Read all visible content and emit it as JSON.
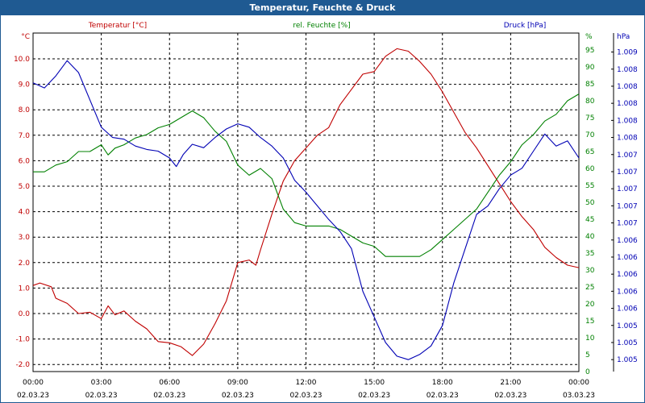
{
  "window": {
    "title": "Temperatur, Feuchte & Druck"
  },
  "colors": {
    "title_bar": "#1f5a92",
    "temperature": "#c00000",
    "humidity": "#008000",
    "pressure": "#0000b4",
    "grid": "#000000"
  },
  "chart_data": {
    "type": "line",
    "title": "Temperatur, Feuchte & Druck",
    "grid": true,
    "x": {
      "range": [
        "02.03.23 00:00",
        "03.03.23 00:00"
      ],
      "ticks": [
        {
          "time": "00:00",
          "date": "02.03.23",
          "hour": 0
        },
        {
          "time": "03:00",
          "date": "02.03.23",
          "hour": 3
        },
        {
          "time": "06:00",
          "date": "02.03.23",
          "hour": 6
        },
        {
          "time": "09:00",
          "date": "02.03.23",
          "hour": 9
        },
        {
          "time": "12:00",
          "date": "02.03.23",
          "hour": 12
        },
        {
          "time": "15:00",
          "date": "02.03.23",
          "hour": 15
        },
        {
          "time": "18:00",
          "date": "02.03.23",
          "hour": 18
        },
        {
          "time": "21:00",
          "date": "02.03.23",
          "hour": 21
        },
        {
          "time": "00:00",
          "date": "03.03.23",
          "hour": 24
        }
      ]
    },
    "axes": {
      "left": {
        "unit": "°C",
        "range": [
          -2.25,
          11.0
        ],
        "ticks": [
          "10.0",
          "9.0",
          "8.0",
          "7.0",
          "6.0",
          "5.0",
          "4.0",
          "3.0",
          "2.0",
          "1.0",
          "0.0",
          "-1.0",
          "-2.0"
        ],
        "tick_values": [
          10,
          9,
          8,
          7,
          6,
          5,
          4,
          3,
          2,
          1,
          0,
          -1,
          -2
        ]
      },
      "right1": {
        "unit": "%",
        "range": [
          0,
          96
        ],
        "ticks": [
          "95",
          "90",
          "85",
          "80",
          "75",
          "70",
          "65",
          "60",
          "55",
          "50",
          "45",
          "40",
          "35",
          "30",
          "25",
          "20",
          "15",
          "10",
          "5",
          "0"
        ],
        "tick_values": [
          95,
          90,
          85,
          80,
          75,
          70,
          65,
          60,
          55,
          50,
          45,
          40,
          35,
          30,
          25,
          20,
          15,
          10,
          5,
          0
        ]
      },
      "right2": {
        "unit": "hPa",
        "range": [
          0,
          20
        ],
        "ticks": [
          "1.009",
          "1.008",
          "1.008",
          "1.008",
          "1.008",
          "1.008",
          "1.007",
          "1.007",
          "1.007",
          "1.007",
          "1.007",
          "1.006",
          "1.006",
          "1.006",
          "1.006",
          "1.006",
          "1.005",
          "1.005",
          "1.005"
        ],
        "tick_values": [
          19,
          18,
          17,
          16,
          15,
          14,
          13,
          12,
          11,
          10,
          9,
          8,
          7,
          6,
          5,
          4,
          3,
          2,
          1
        ]
      }
    },
    "series": [
      {
        "name": "Temperatur [°C]",
        "axis": "left",
        "x": [
          0,
          0.3,
          0.8,
          1.0,
          1.5,
          2.0,
          2.5,
          3.0,
          3.3,
          3.6,
          4.0,
          4.5,
          5.0,
          5.5,
          6.0,
          6.5,
          7.0,
          7.5,
          8.0,
          8.5,
          9.0,
          9.5,
          9.8,
          10.0,
          10.5,
          11.0,
          11.5,
          12.0,
          12.5,
          13.0,
          13.5,
          14.0,
          14.5,
          15.0,
          15.5,
          16.0,
          16.5,
          17.0,
          17.5,
          18.0,
          18.5,
          19.0,
          19.5,
          20.0,
          20.5,
          21.0,
          21.5,
          22.0,
          22.5,
          23.0,
          23.5,
          24.0
        ],
        "values": [
          1.1,
          1.2,
          1.05,
          0.6,
          0.4,
          0.0,
          0.05,
          -0.2,
          0.3,
          -0.05,
          0.1,
          -0.3,
          -0.6,
          -1.1,
          -1.15,
          -1.3,
          -1.65,
          -1.2,
          -0.4,
          0.5,
          2.0,
          2.1,
          1.9,
          2.5,
          3.9,
          5.2,
          6.0,
          6.5,
          7.0,
          7.3,
          8.2,
          8.8,
          9.4,
          9.5,
          10.1,
          10.4,
          10.3,
          9.9,
          9.4,
          8.7,
          7.9,
          7.1,
          6.5,
          5.8,
          5.1,
          4.4,
          3.8,
          3.3,
          2.6,
          2.2,
          1.9,
          1.8
        ]
      },
      {
        "name": "rel. Feuchte [%]",
        "axis": "right1",
        "x": [
          0,
          0.5,
          1.0,
          1.5,
          2.0,
          2.5,
          3.0,
          3.3,
          3.6,
          4.0,
          4.5,
          5.0,
          5.5,
          6.0,
          6.5,
          7.0,
          7.5,
          8.0,
          8.5,
          9.0,
          9.5,
          10.0,
          10.5,
          11.0,
          11.5,
          12.0,
          12.5,
          13.0,
          13.5,
          14.0,
          14.5,
          15.0,
          15.5,
          16.0,
          16.5,
          17.0,
          17.5,
          18.0,
          18.5,
          19.0,
          19.5,
          20.0,
          20.5,
          21.0,
          21.5,
          22.0,
          22.5,
          23.0,
          23.5,
          24.0
        ],
        "values": [
          59,
          59,
          61,
          62,
          65,
          65,
          67,
          64,
          66,
          67,
          69,
          70,
          72,
          73,
          75,
          77,
          75,
          71,
          68,
          61,
          58,
          60,
          57,
          48,
          44,
          43,
          43,
          43,
          42,
          40,
          38,
          37,
          34,
          34,
          34,
          34,
          36,
          39,
          42,
          45,
          48,
          53,
          58,
          62,
          67,
          70,
          74,
          76,
          80,
          82
        ]
      },
      {
        "name": "Druck [hPa]",
        "axis": "right2",
        "x": [
          0,
          0.5,
          1.0,
          1.5,
          2.0,
          2.5,
          3.0,
          3.5,
          4.0,
          4.5,
          5.0,
          5.5,
          6.0,
          6.3,
          6.6,
          7.0,
          7.5,
          8.0,
          8.5,
          9.0,
          9.5,
          10.0,
          10.5,
          11.0,
          11.5,
          12.0,
          12.5,
          13.0,
          13.5,
          14.0,
          14.5,
          15.0,
          15.5,
          16.0,
          16.5,
          17.0,
          17.5,
          18.0,
          18.5,
          19.0,
          19.5,
          20.0,
          20.5,
          21.0,
          21.5,
          22.0,
          22.5,
          23.0,
          23.5,
          24.0
        ],
        "values": [
          17.2,
          16.9,
          17.6,
          18.5,
          17.8,
          16.2,
          14.6,
          14.0,
          13.9,
          13.5,
          13.3,
          13.2,
          12.8,
          12.3,
          13.0,
          13.6,
          13.4,
          14.0,
          14.5,
          14.8,
          14.6,
          14.0,
          13.5,
          12.8,
          11.5,
          10.8,
          10.0,
          9.2,
          8.5,
          7.5,
          5.0,
          3.5,
          2.0,
          1.2,
          1.0,
          1.3,
          1.8,
          3.0,
          5.5,
          7.5,
          9.5,
          10.0,
          11.0,
          11.8,
          12.2,
          13.2,
          14.2,
          13.5,
          13.8,
          12.8
        ]
      }
    ]
  }
}
